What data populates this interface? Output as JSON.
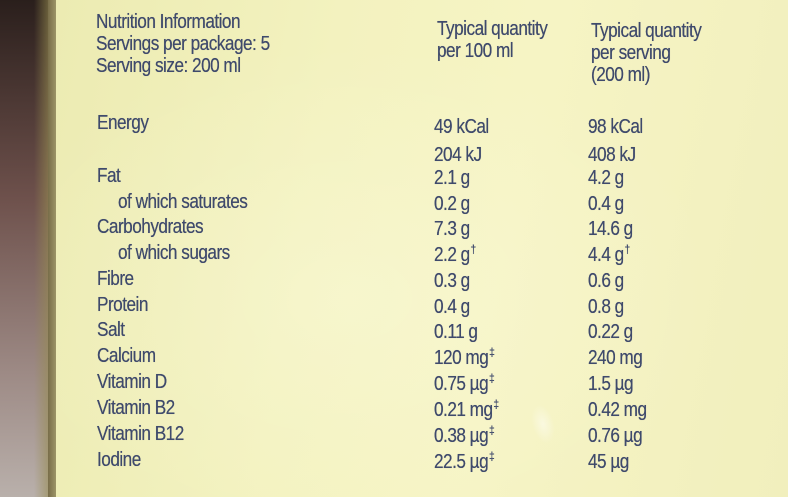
{
  "header": {
    "title": "Nutrition Information",
    "servings_per_package": "Servings per package: 5",
    "serving_size": "Serving size: 200 ml",
    "col_per_100": [
      "Typical quantity",
      "per 100 ml"
    ],
    "col_per_serving": [
      "Typical quantity",
      "per serving",
      "(200 ml)"
    ]
  },
  "nutrients": [
    {
      "label": "Energy",
      "per_100": "49 kCal",
      "per_serving": "98 kCal",
      "mark100": "",
      "markSer": ""
    },
    {
      "label": "",
      "per_100": "204 kJ",
      "per_serving": "408 kJ",
      "mark100": "",
      "markSer": ""
    },
    {
      "label": "Fat",
      "per_100": "2.1 g",
      "per_serving": "4.2 g",
      "mark100": "",
      "markSer": ""
    },
    {
      "label": "of which saturates",
      "per_100": "0.2 g",
      "per_serving": "0.4 g",
      "mark100": "",
      "markSer": "",
      "indent": true
    },
    {
      "label": "Carbohydrates",
      "per_100": "7.3 g",
      "per_serving": "14.6 g",
      "mark100": "",
      "markSer": ""
    },
    {
      "label": "of which sugars",
      "per_100": "2.2 g",
      "per_serving": "4.4 g",
      "mark100": "†",
      "markSer": "†",
      "indent": true
    },
    {
      "label": "Fibre",
      "per_100": "0.3 g",
      "per_serving": "0.6 g",
      "mark100": "",
      "markSer": ""
    },
    {
      "label": "Protein",
      "per_100": "0.4 g",
      "per_serving": "0.8 g",
      "mark100": "",
      "markSer": ""
    },
    {
      "label": "Salt",
      "per_100": "0.11 g",
      "per_serving": "0.22 g",
      "mark100": "",
      "markSer": ""
    },
    {
      "label": "Calcium",
      "per_100": "120 mg",
      "per_serving": "240 mg",
      "mark100": "‡",
      "markSer": ""
    },
    {
      "label": "Vitamin D",
      "per_100": "0.75 µg",
      "per_serving": "1.5 µg",
      "mark100": "‡",
      "markSer": ""
    },
    {
      "label": "Vitamin B2",
      "per_100": "0.21 mg",
      "per_serving": "0.42 mg",
      "mark100": "‡",
      "markSer": ""
    },
    {
      "label": "Vitamin B12",
      "per_100": "0.38 µg",
      "per_serving": "0.76 µg",
      "mark100": "‡",
      "markSer": ""
    },
    {
      "label": "Iodine",
      "per_100": "22.5 µg",
      "per_serving": "45 µg",
      "mark100": "‡",
      "markSer": ""
    }
  ],
  "colors": {
    "ink": "#3f4a6c",
    "panel": "#f3f2bf",
    "background": "#4e423d"
  }
}
